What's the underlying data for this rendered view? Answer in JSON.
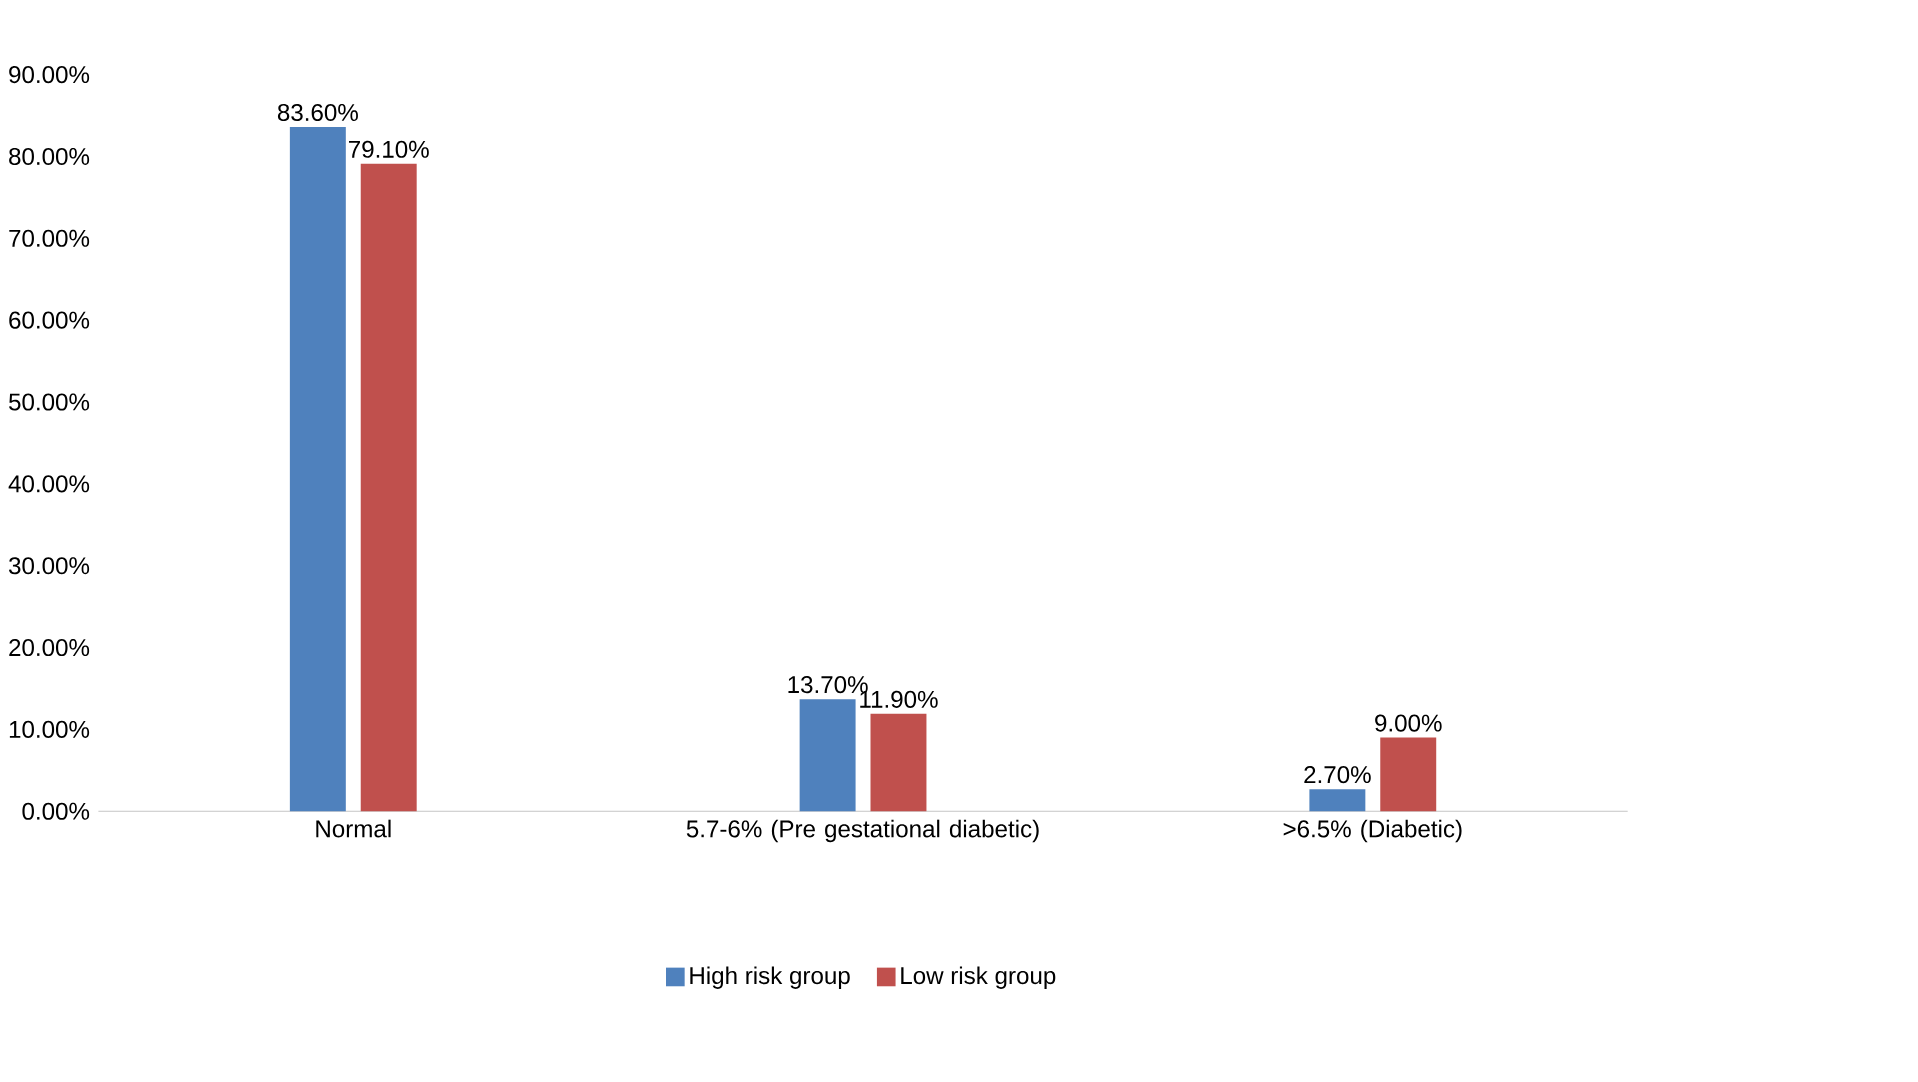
{
  "chart_data": {
    "type": "bar",
    "categories": [
      "Normal",
      "5.7-6% (Pre gestational diabetic)",
      ">6.5% (Diabetic)"
    ],
    "series": [
      {
        "name": "High risk group",
        "color": "#4f81bd",
        "values": [
          83.6,
          13.7,
          2.7
        ],
        "value_labels": [
          "83.60%",
          "13.70%",
          "2.70%"
        ]
      },
      {
        "name": "Low risk group",
        "color": "#c0504d",
        "values": [
          79.1,
          11.9,
          9.0
        ],
        "value_labels": [
          "79.10%",
          "11.90%",
          "9.00%"
        ]
      }
    ],
    "ylim": [
      0,
      90
    ],
    "yticks": [
      {
        "value": 0,
        "label": "0.00%"
      },
      {
        "value": 10,
        "label": "10.00%"
      },
      {
        "value": 20,
        "label": "20.00%"
      },
      {
        "value": 30,
        "label": "30.00%"
      },
      {
        "value": 40,
        "label": "40.00%"
      },
      {
        "value": 50,
        "label": "50.00%"
      },
      {
        "value": 60,
        "label": "60.00%"
      },
      {
        "value": 70,
        "label": "70.00%"
      },
      {
        "value": 80,
        "label": "80.00%"
      },
      {
        "value": 90,
        "label": "90.00%"
      }
    ],
    "grid": false,
    "legend": "bottom"
  }
}
